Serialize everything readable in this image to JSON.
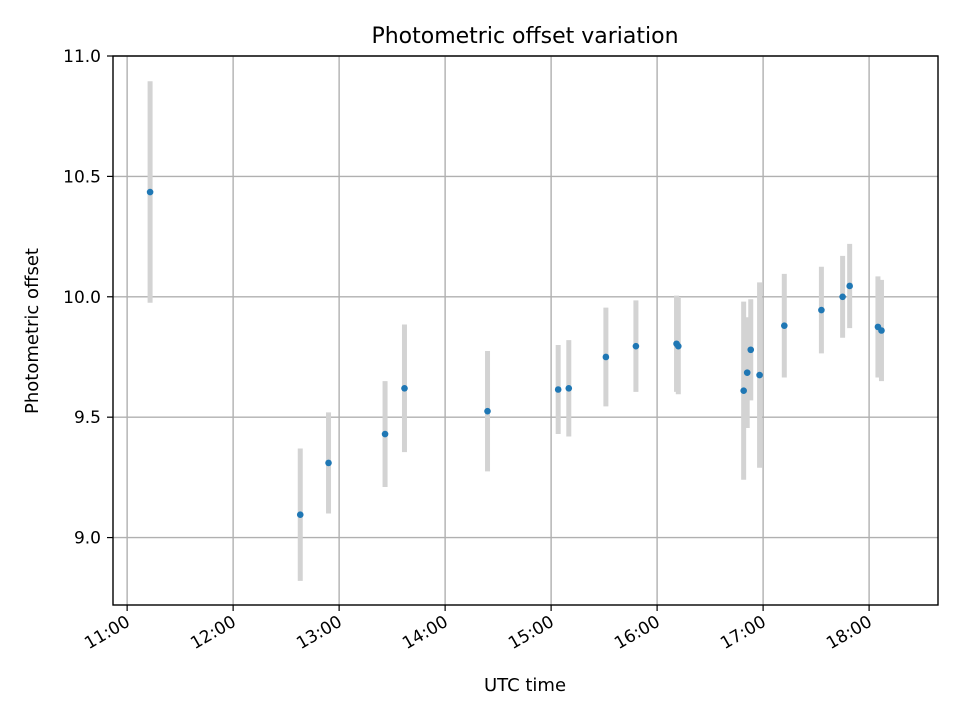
{
  "chart_data": {
    "type": "scatter",
    "title": "Photometric offset variation",
    "xlabel": "UTC time",
    "ylabel": "Photometric offset",
    "x_tick_labels": [
      "11:00",
      "12:00",
      "13:00",
      "14:00",
      "15:00",
      "16:00",
      "17:00",
      "18:00"
    ],
    "y_tick_labels": [
      "9.0",
      "9.5",
      "10.0",
      "10.5",
      "11.0"
    ],
    "xlim": [
      "10:52",
      "18:39"
    ],
    "ylim": [
      8.72,
      11.0
    ],
    "grid": true,
    "colors": {
      "point": "#1f77b4",
      "errorbar": "#d3d3d3"
    },
    "points": [
      {
        "x": "11:13",
        "y": 10.435,
        "err": 0.46
      },
      {
        "x": "12:38",
        "y": 9.095,
        "err": 0.275
      },
      {
        "x": "12:54",
        "y": 9.31,
        "err": 0.21
      },
      {
        "x": "13:26",
        "y": 9.43,
        "err": 0.22
      },
      {
        "x": "13:37",
        "y": 9.62,
        "err": 0.265
      },
      {
        "x": "14:24",
        "y": 9.525,
        "err": 0.25
      },
      {
        "x": "15:04",
        "y": 9.615,
        "err": 0.185
      },
      {
        "x": "15:10",
        "y": 9.62,
        "err": 0.2
      },
      {
        "x": "15:31",
        "y": 9.75,
        "err": 0.205
      },
      {
        "x": "15:48",
        "y": 9.795,
        "err": 0.19
      },
      {
        "x": "16:11",
        "y": 9.805,
        "err": 0.2
      },
      {
        "x": "16:12",
        "y": 9.795,
        "err": 0.2
      },
      {
        "x": "16:49",
        "y": 9.61,
        "err": 0.37
      },
      {
        "x": "16:51",
        "y": 9.685,
        "err": 0.23
      },
      {
        "x": "16:53",
        "y": 9.78,
        "err": 0.21
      },
      {
        "x": "16:58",
        "y": 9.675,
        "err": 0.385
      },
      {
        "x": "17:12",
        "y": 9.88,
        "err": 0.215
      },
      {
        "x": "17:33",
        "y": 9.945,
        "err": 0.18
      },
      {
        "x": "17:45",
        "y": 10.0,
        "err": 0.17
      },
      {
        "x": "17:49",
        "y": 10.045,
        "err": 0.175
      },
      {
        "x": "18:05",
        "y": 9.875,
        "err": 0.21
      },
      {
        "x": "18:07",
        "y": 9.86,
        "err": 0.21
      }
    ]
  }
}
